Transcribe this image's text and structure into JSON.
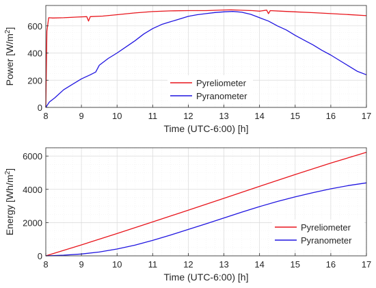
{
  "figure": {
    "grid": true,
    "colors": {
      "pyreliometer": "#e8141b",
      "pyranometer": "#1f14e0",
      "axis": "#262626",
      "grid": "#d9d9d9",
      "plot_bg": "#ffffff"
    }
  },
  "chart_data": [
    {
      "type": "line",
      "title": "",
      "xlabel": "Time (UTC-6:00) [h]",
      "ylabel": "Power [W/m2]",
      "ylabel_base": "Power [W/m",
      "ylabel_sup": "2",
      "ylabel_tail": "]",
      "xlim": [
        8,
        17
      ],
      "ylim": [
        0,
        750
      ],
      "xticks": [
        8,
        9,
        10,
        11,
        12,
        13,
        14,
        15,
        16,
        17
      ],
      "yticks": [
        0,
        200,
        400,
        600
      ],
      "legend_position": "bottom-center",
      "series": [
        {
          "name": "Pyreliometer",
          "color": "#e8141b",
          "x": [
            8.0,
            8.03,
            8.08,
            8.2,
            8.5,
            8.9,
            9.15,
            9.2,
            9.25,
            9.6,
            10.0,
            10.5,
            11.0,
            11.5,
            12.0,
            12.5,
            13.0,
            13.2,
            13.5,
            13.8,
            14.0,
            14.2,
            14.25,
            14.3,
            14.6,
            15.0,
            15.5,
            16.0,
            16.5,
            17.0
          ],
          "y": [
            0,
            560,
            660,
            658,
            660,
            665,
            668,
            635,
            668,
            672,
            682,
            695,
            705,
            710,
            712,
            712,
            717,
            718,
            715,
            712,
            708,
            716,
            690,
            712,
            708,
            703,
            697,
            690,
            683,
            675
          ]
        },
        {
          "name": "Pyranometer",
          "color": "#1f14e0",
          "x": [
            8.0,
            8.1,
            8.25,
            8.5,
            8.75,
            9.0,
            9.25,
            9.4,
            9.5,
            9.75,
            10.0,
            10.25,
            10.5,
            10.75,
            11.0,
            11.25,
            11.5,
            11.75,
            12.0,
            12.25,
            12.5,
            12.75,
            13.0,
            13.25,
            13.5,
            13.75,
            14.0,
            14.25,
            14.5,
            14.75,
            15.0,
            15.25,
            15.5,
            15.75,
            16.0,
            16.25,
            16.5,
            16.75,
            17.0
          ],
          "y": [
            0,
            40,
            70,
            130,
            170,
            210,
            240,
            260,
            310,
            360,
            400,
            445,
            490,
            540,
            580,
            610,
            630,
            650,
            670,
            682,
            690,
            698,
            703,
            706,
            700,
            685,
            660,
            635,
            600,
            570,
            530,
            495,
            460,
            420,
            385,
            345,
            305,
            265,
            240
          ]
        }
      ]
    },
    {
      "type": "line",
      "title": "",
      "xlabel": "Time (UTC-6:00) [h]",
      "ylabel": "Energy [Wh/m2]",
      "ylabel_base": "Energy [Wh/m",
      "ylabel_sup": "2",
      "ylabel_tail": "]",
      "xlim": [
        8,
        17
      ],
      "ylim": [
        0,
        6500
      ],
      "xticks": [
        8,
        9,
        10,
        11,
        12,
        13,
        14,
        15,
        16,
        17
      ],
      "yticks": [
        0,
        2000,
        4000,
        6000
      ],
      "legend_position": "bottom-right",
      "series": [
        {
          "name": "Pyreliometer",
          "color": "#e8141b",
          "x": [
            8,
            9,
            10,
            11,
            12,
            13,
            14,
            15,
            16,
            17
          ],
          "y": [
            0,
            660,
            1340,
            2040,
            2750,
            3460,
            4180,
            4890,
            5580,
            6230
          ]
        },
        {
          "name": "Pyranometer",
          "color": "#1f14e0",
          "x": [
            8,
            8.5,
            9,
            9.5,
            10,
            10.5,
            11,
            11.5,
            12,
            12.5,
            13,
            13.5,
            14,
            14.5,
            15,
            15.5,
            16,
            16.5,
            17
          ],
          "y": [
            0,
            40,
            110,
            230,
            410,
            640,
            930,
            1250,
            1590,
            1930,
            2280,
            2630,
            2960,
            3270,
            3550,
            3800,
            4030,
            4230,
            4390
          ]
        }
      ]
    }
  ]
}
